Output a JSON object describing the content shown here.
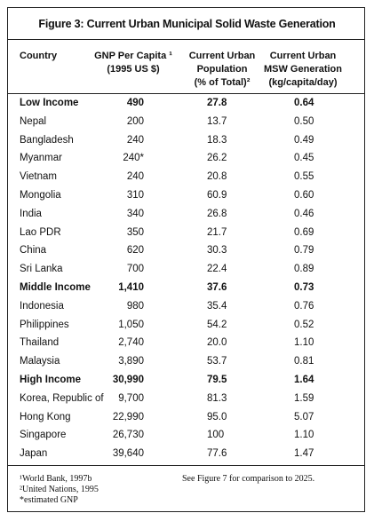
{
  "title": "Figure 3: Current Urban Municipal Solid Waste Generation",
  "table": {
    "columns": [
      [
        "Country"
      ],
      [
        "GNP Per Capita ¹",
        "(1995 US $)"
      ],
      [
        "Current Urban",
        "Population",
        "(% of Total)²"
      ],
      [
        "Current Urban",
        "MSW Generation",
        "(kg/capita/day)"
      ]
    ],
    "rows": [
      {
        "cells": [
          "Low Income",
          "490",
          "27.8",
          "0.64"
        ],
        "bold": true
      },
      {
        "cells": [
          "Nepal",
          "200",
          "13.7",
          "0.50"
        ]
      },
      {
        "cells": [
          "Bangladesh",
          "240",
          "18.3",
          "0.49"
        ]
      },
      {
        "cells": [
          "Myanmar",
          "240*",
          "26.2",
          "0.45"
        ]
      },
      {
        "cells": [
          "Vietnam",
          "240",
          "20.8",
          "0.55"
        ]
      },
      {
        "cells": [
          "Mongolia",
          "310",
          "60.9",
          "0.60"
        ]
      },
      {
        "cells": [
          "India",
          "340",
          "26.8",
          "0.46"
        ]
      },
      {
        "cells": [
          "Lao PDR",
          "350",
          "21.7",
          "0.69"
        ]
      },
      {
        "cells": [
          "China",
          "620",
          "30.3",
          "0.79"
        ]
      },
      {
        "cells": [
          "Sri Lanka",
          "700",
          "22.4",
          "0.89"
        ]
      },
      {
        "cells": [
          "Middle Income",
          "1,410",
          "37.6",
          "0.73"
        ],
        "bold": true
      },
      {
        "cells": [
          "Indonesia",
          "980",
          "35.4",
          "0.76"
        ]
      },
      {
        "cells": [
          "Philippines",
          "1,050",
          "54.2",
          "0.52"
        ]
      },
      {
        "cells": [
          "Thailand",
          "2,740",
          "20.0",
          "1.10"
        ]
      },
      {
        "cells": [
          "Malaysia",
          "3,890",
          "53.7",
          "0.81"
        ]
      },
      {
        "cells": [
          "High Income",
          "30,990",
          "79.5",
          "1.64"
        ],
        "bold": true
      },
      {
        "cells": [
          "Korea, Republic of",
          "9,700",
          "81.3",
          "1.59"
        ]
      },
      {
        "cells": [
          "Hong Kong",
          "22,990",
          "95.0",
          "5.07"
        ]
      },
      {
        "cells": [
          "Singapore",
          "26,730",
          "100",
          "1.10"
        ]
      },
      {
        "cells": [
          "Japan",
          "39,640",
          "77.6",
          "1.47"
        ]
      }
    ]
  },
  "footnotes": [
    "¹World Bank, 1997b",
    "²United Nations, 1995",
    "*estimated GNP"
  ],
  "note": "See Figure 7 for comparison to 2025."
}
